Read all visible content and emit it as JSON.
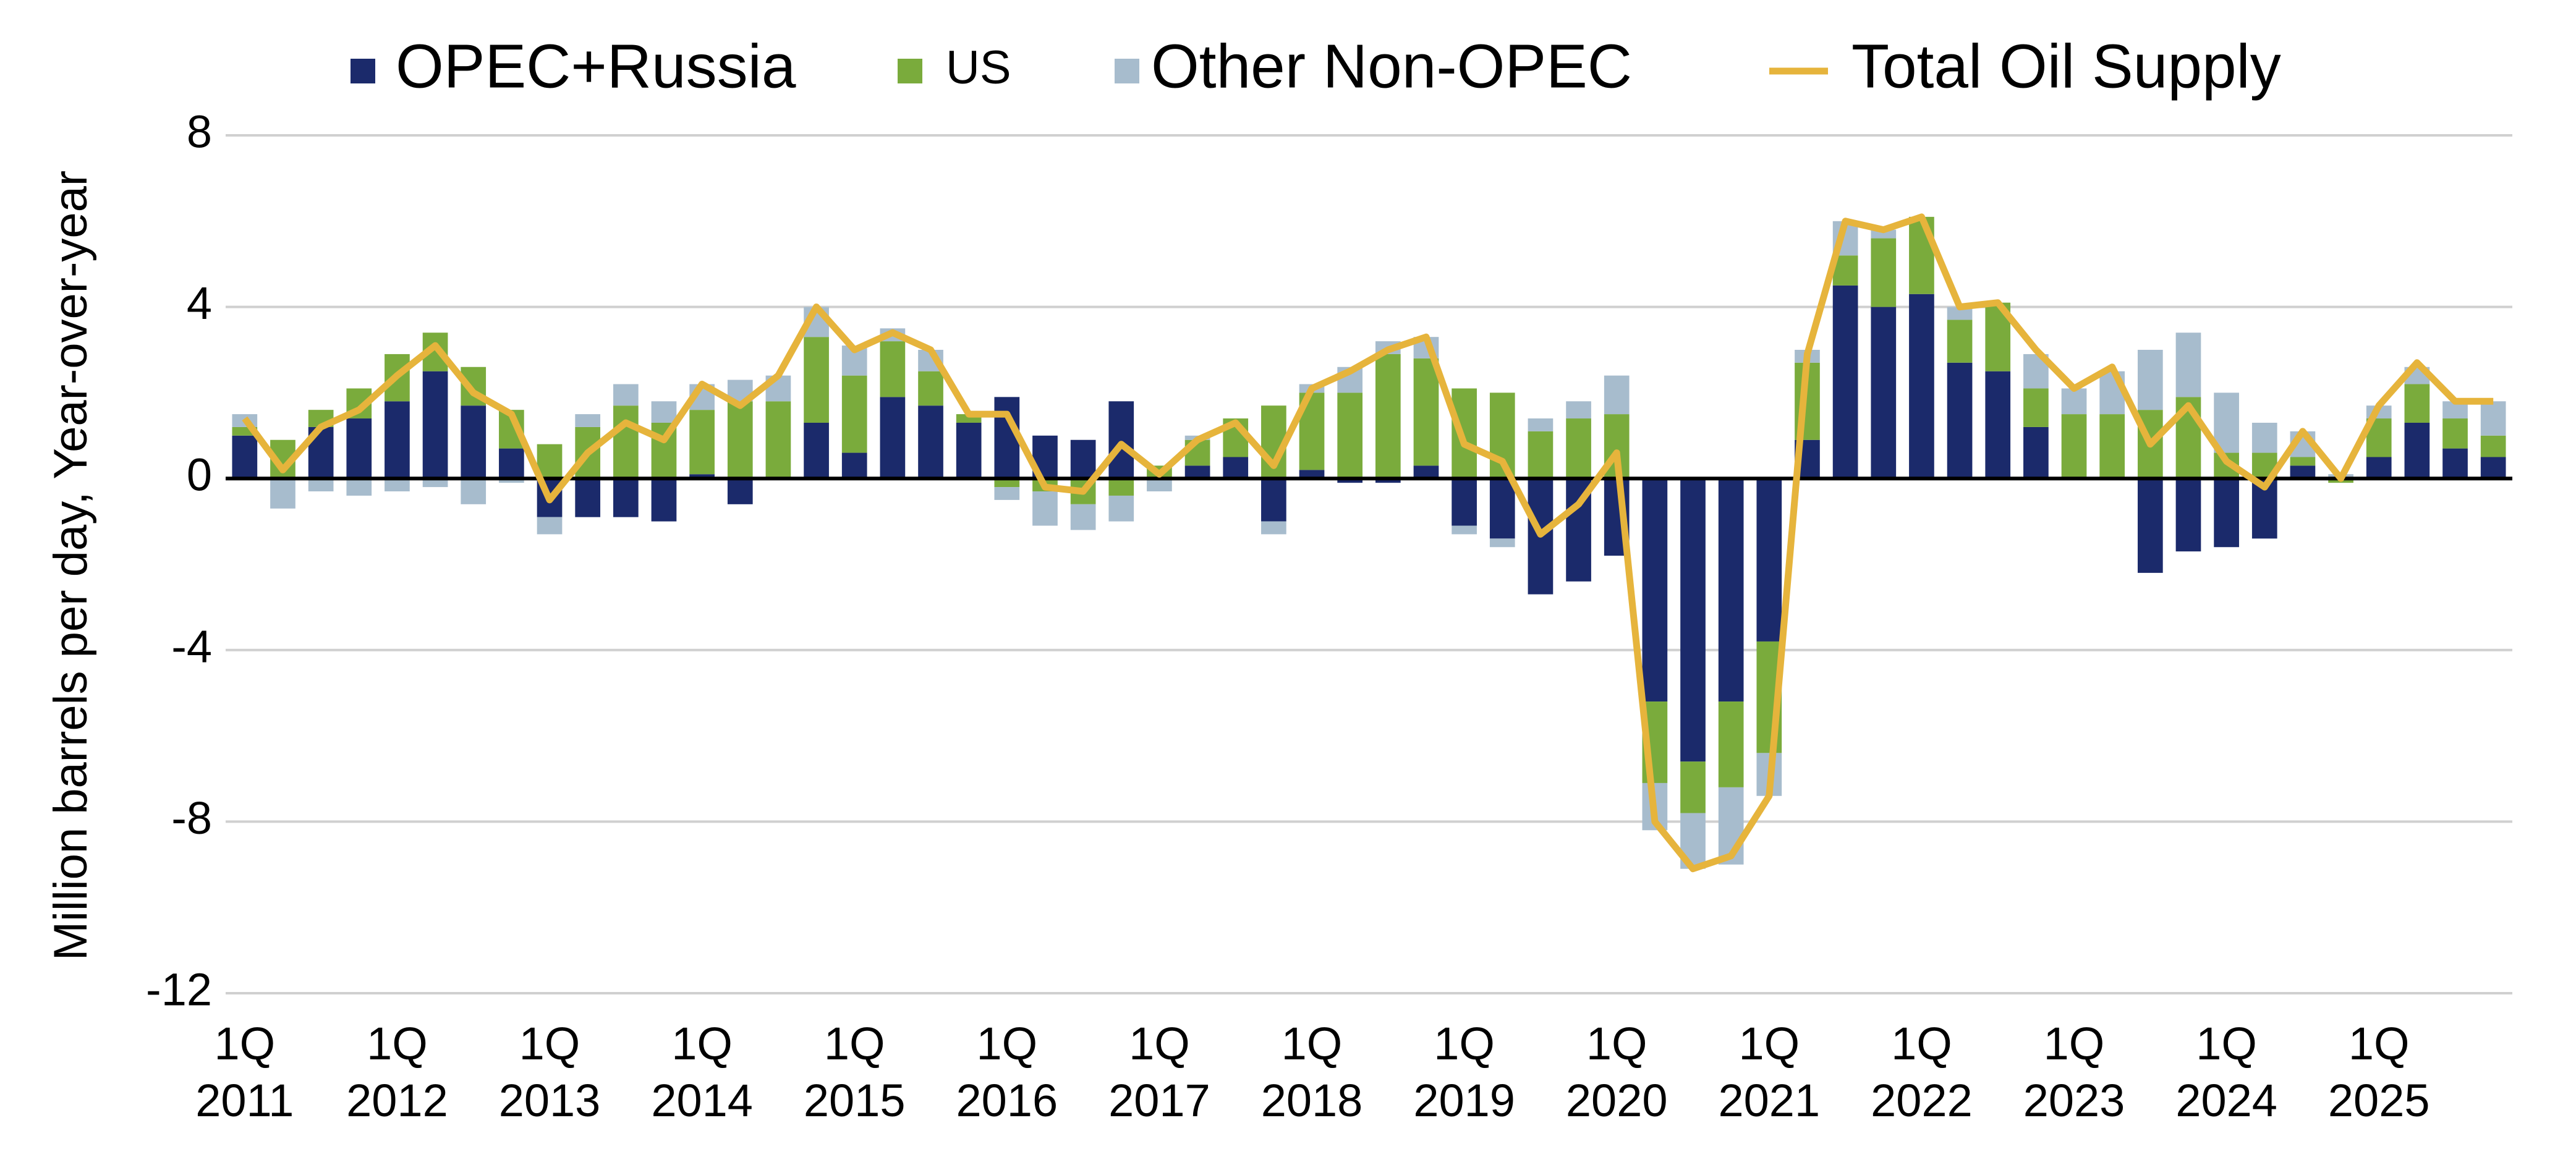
{
  "chart_data": {
    "type": "bar",
    "y_label": "Million barrels per day, Year-over-year",
    "categories": [
      "1Q\n2011",
      null,
      null,
      null,
      "1Q\n2012",
      null,
      null,
      null,
      "1Q\n2013",
      null,
      null,
      null,
      "1Q\n2014",
      null,
      null,
      null,
      "1Q\n2015",
      null,
      null,
      null,
      "1Q\n2016",
      null,
      null,
      null,
      "1Q\n2017",
      null,
      null,
      null,
      "1Q\n2018",
      null,
      null,
      null,
      "1Q\n2019",
      null,
      null,
      null,
      "1Q\n2020",
      null,
      null,
      null,
      "1Q\n2021",
      null,
      null,
      null,
      "1Q\n2022",
      null,
      null,
      null,
      "1Q\n2023",
      null,
      null,
      null,
      "1Q\n2024",
      null,
      null,
      null,
      "1Q\n2025",
      null,
      null,
      null
    ],
    "series": [
      {
        "name": "OPEC+Russia",
        "color": "#1b2a6b",
        "type": "bar",
        "values": [
          1.0,
          0.0,
          1.2,
          1.4,
          1.8,
          2.5,
          1.7,
          0.7,
          -0.9,
          -0.9,
          -0.9,
          -1.0,
          0.1,
          -0.6,
          0.0,
          1.3,
          0.6,
          1.9,
          1.7,
          1.3,
          1.9,
          1.0,
          0.9,
          1.8,
          0.0,
          0.3,
          0.5,
          -1.0,
          0.2,
          -0.1,
          -0.1,
          0.3,
          -1.1,
          -1.4,
          -2.7,
          -2.4,
          -1.8,
          -5.2,
          -6.6,
          -5.2,
          -3.8,
          0.9,
          4.5,
          4.0,
          4.3,
          2.7,
          2.5,
          1.2,
          0.0,
          0.0,
          -2.2,
          -1.7,
          -1.6,
          -1.4,
          0.3,
          0.0,
          0.5,
          1.3,
          0.7,
          0.5
        ]
      },
      {
        "name": "US",
        "color": "#7aab3c",
        "type": "bar",
        "values": [
          0.2,
          0.9,
          0.4,
          0.7,
          1.1,
          0.9,
          0.9,
          0.9,
          0.8,
          1.2,
          1.7,
          1.3,
          1.5,
          1.8,
          1.8,
          2.0,
          1.8,
          1.3,
          0.8,
          0.2,
          -0.2,
          -0.3,
          -0.6,
          -0.4,
          0.3,
          0.6,
          0.9,
          1.7,
          1.8,
          2.0,
          2.9,
          2.5,
          2.1,
          2.0,
          1.1,
          1.4,
          1.5,
          -1.9,
          -1.2,
          -2.0,
          -2.6,
          1.8,
          0.7,
          1.6,
          1.8,
          1.0,
          1.6,
          0.9,
          1.5,
          1.5,
          1.6,
          1.9,
          0.6,
          0.6,
          0.2,
          -0.1,
          0.9,
          0.9,
          0.7,
          0.5
        ]
      },
      {
        "name": "Other Non-OPEC",
        "color": "#a7bccd",
        "type": "bar",
        "values": [
          0.3,
          -0.7,
          -0.3,
          -0.4,
          -0.3,
          -0.2,
          -0.6,
          -0.1,
          -0.4,
          0.3,
          0.5,
          0.5,
          0.6,
          0.5,
          0.6,
          0.7,
          0.7,
          0.3,
          0.5,
          0.0,
          -0.3,
          -0.8,
          -0.6,
          -0.6,
          -0.3,
          0.1,
          0.0,
          -0.3,
          0.2,
          0.6,
          0.3,
          0.5,
          -0.2,
          -0.2,
          0.3,
          0.4,
          0.9,
          -1.1,
          -1.3,
          -1.8,
          -1.0,
          0.3,
          0.8,
          0.2,
          0.0,
          0.3,
          0.0,
          0.8,
          0.6,
          1.0,
          1.4,
          1.5,
          1.4,
          0.7,
          0.6,
          0.1,
          0.3,
          0.4,
          0.4,
          0.8
        ]
      },
      {
        "name": "Total Oil Supply",
        "color": "#e6b43c",
        "type": "line",
        "values": [
          1.4,
          0.2,
          1.2,
          1.6,
          2.4,
          3.1,
          2.0,
          1.5,
          -0.5,
          0.6,
          1.3,
          0.9,
          2.2,
          1.7,
          2.4,
          4.0,
          3.0,
          3.4,
          3.0,
          1.5,
          1.5,
          -0.2,
          -0.3,
          0.8,
          0.1,
          0.9,
          1.3,
          0.3,
          2.1,
          2.5,
          3.0,
          3.3,
          0.8,
          0.4,
          -1.3,
          -0.6,
          0.6,
          -8.0,
          -9.1,
          -8.8,
          -7.4,
          2.9,
          6.0,
          5.8,
          6.1,
          4.0,
          4.1,
          3.0,
          2.1,
          2.6,
          0.8,
          1.7,
          0.4,
          -0.2,
          1.1,
          0.0,
          1.7,
          2.7,
          1.8,
          1.8
        ]
      }
    ],
    "ylim": [
      -12,
      8
    ],
    "yticks": [
      -12,
      -8,
      -4,
      0,
      4,
      8
    ],
    "grid": true,
    "legend": "top"
  }
}
